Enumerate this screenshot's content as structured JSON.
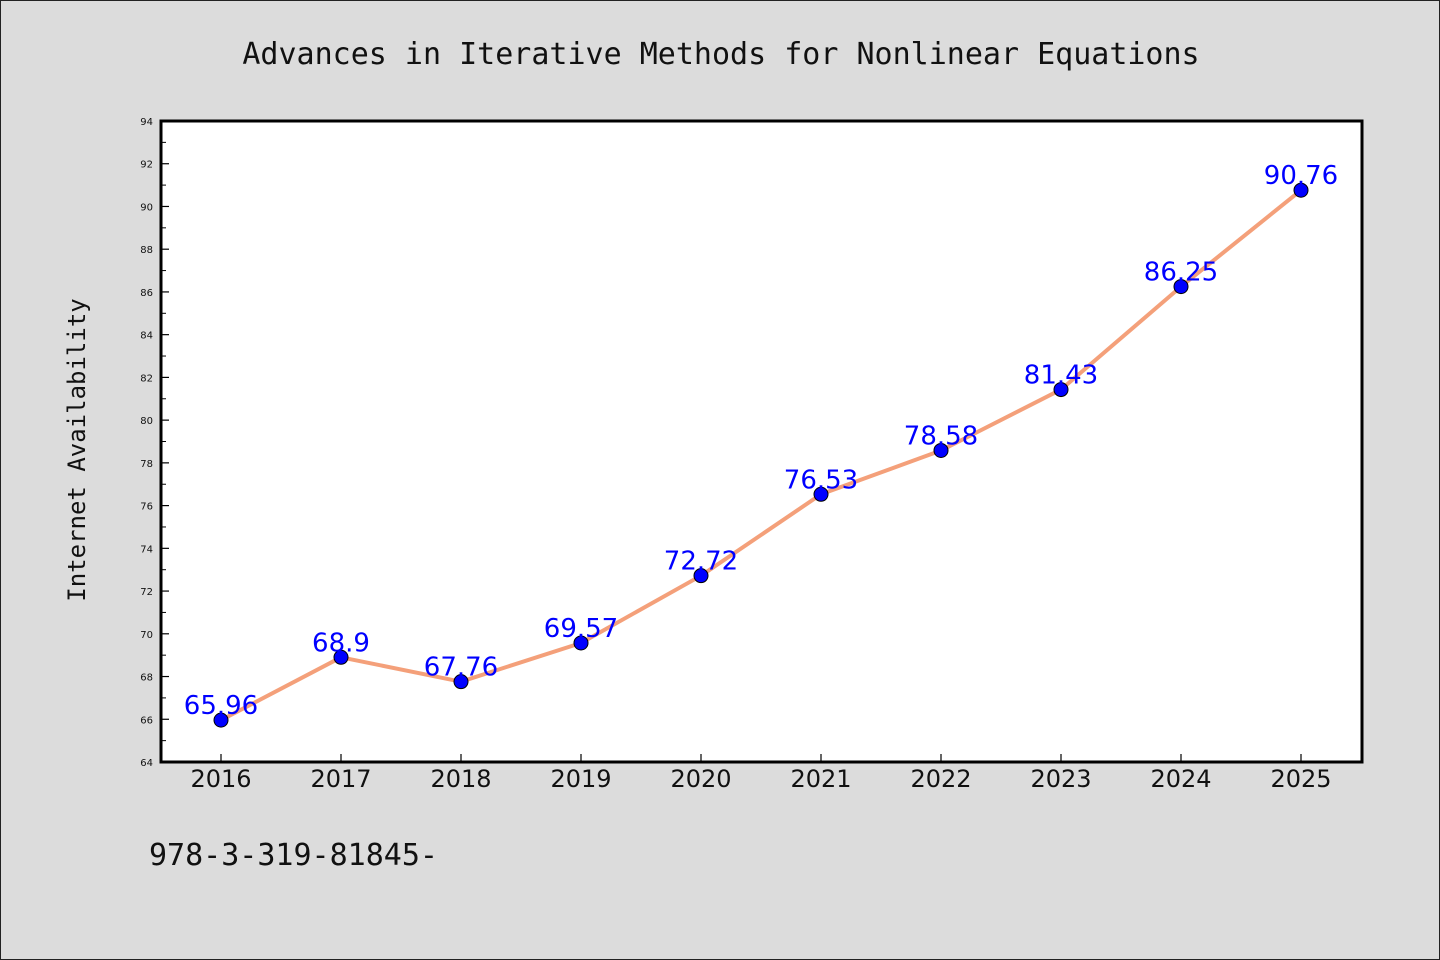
{
  "chart_data": {
    "type": "line",
    "title": "Advances in Iterative Methods for Nonlinear Equations",
    "xlabel": "",
    "ylabel": "Internet Availability",
    "categories": [
      "2016",
      "2017",
      "2018",
      "2019",
      "2020",
      "2021",
      "2022",
      "2023",
      "2024",
      "2025"
    ],
    "series": [
      {
        "values": [
          65.96,
          68.9,
          67.76,
          69.57,
          72.72,
          76.53,
          78.58,
          81.43,
          86.25,
          90.76
        ],
        "labels": [
          "65.96",
          "68.9",
          "67.76",
          "69.57",
          "72.72",
          "76.53",
          "78.58",
          "81.43",
          "86.25",
          "90.76"
        ],
        "line_color": "#f4a07a",
        "marker_color": "#0000ff"
      }
    ],
    "ylim": [
      64,
      94
    ],
    "yticks": [
      "64",
      "66",
      "68",
      "70",
      "72",
      "74",
      "76",
      "78",
      "80",
      "82",
      "84",
      "86",
      "88",
      "90",
      "92",
      "94"
    ],
    "grid": false,
    "legend": "none"
  },
  "footer": {
    "text": "978-3-319-81845-"
  },
  "colors": {
    "background": "#dcdcdc",
    "plot_background": "#ffffff",
    "line": "#f4a07a",
    "marker": "#0000ff",
    "data_label": "#0000ff"
  }
}
